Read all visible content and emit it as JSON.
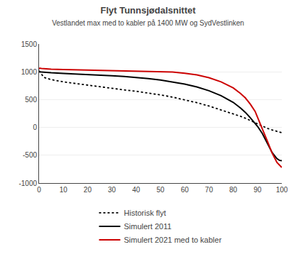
{
  "chart_data": {
    "type": "line",
    "title": "Flyt Tunnsjødalsnittet",
    "subtitle": "Vestlandet max med to kabler på 1400 MW og SydVestlinken",
    "xlim": [
      0,
      100
    ],
    "ylim": [
      -1000,
      1500
    ],
    "xticks": [
      0,
      10,
      20,
      30,
      40,
      50,
      60,
      70,
      80,
      90,
      100
    ],
    "yticks": [
      -1000,
      -500,
      0,
      500,
      1000,
      1500
    ],
    "grid": "y",
    "legend": "bottom",
    "series": [
      {
        "name": "Historisk flyt",
        "color": "#000000",
        "line_style": "dotted",
        "x": [
          0,
          2,
          5,
          10,
          15,
          20,
          25,
          30,
          35,
          40,
          45,
          50,
          55,
          60,
          65,
          70,
          75,
          80,
          83,
          85,
          87,
          90,
          92,
          94,
          96,
          98,
          99,
          100
        ],
        "values": [
          1020,
          900,
          860,
          820,
          790,
          760,
          730,
          700,
          675,
          650,
          620,
          585,
          545,
          495,
          445,
          385,
          315,
          250,
          200,
          165,
          125,
          55,
          15,
          -15,
          -45,
          -70,
          -85,
          -95
        ]
      },
      {
        "name": "Simulert 2011",
        "color": "#000000",
        "line_style": "solid",
        "x": [
          0,
          2,
          5,
          10,
          15,
          20,
          25,
          30,
          35,
          40,
          45,
          50,
          55,
          60,
          65,
          70,
          75,
          80,
          83,
          85,
          87,
          89,
          90,
          92,
          94,
          96,
          98,
          99,
          100
        ],
        "values": [
          1000,
          990,
          982,
          972,
          963,
          953,
          942,
          929,
          915,
          898,
          877,
          852,
          820,
          780,
          728,
          660,
          570,
          450,
          350,
          270,
          175,
          80,
          20,
          -110,
          -280,
          -450,
          -560,
          -590,
          -600
        ]
      },
      {
        "name": "Simulert 2021 med to kabler",
        "color": "#cc0000",
        "line_style": "solid",
        "x": [
          0,
          0.3,
          1,
          2,
          5,
          10,
          15,
          20,
          25,
          30,
          35,
          40,
          45,
          50,
          55,
          60,
          65,
          70,
          75,
          80,
          83,
          85,
          87,
          89,
          90,
          92,
          94,
          96,
          98,
          99,
          100
        ],
        "values": [
          1050,
          1065,
          1060,
          1055,
          1048,
          1040,
          1035,
          1030,
          1028,
          1025,
          1022,
          1018,
          1013,
          1005,
          995,
          975,
          945,
          895,
          820,
          710,
          610,
          530,
          420,
          290,
          190,
          -30,
          -240,
          -460,
          -630,
          -680,
          -720
        ]
      }
    ]
  }
}
